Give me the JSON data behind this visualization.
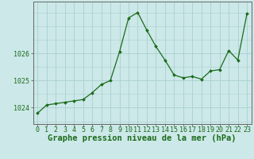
{
  "x": [
    0,
    1,
    2,
    3,
    4,
    5,
    6,
    7,
    8,
    9,
    10,
    11,
    12,
    13,
    14,
    15,
    16,
    17,
    18,
    19,
    20,
    21,
    22,
    23
  ],
  "y": [
    1023.8,
    1024.1,
    1024.15,
    1024.2,
    1024.25,
    1024.3,
    1024.55,
    1024.85,
    1025.0,
    1026.05,
    1027.3,
    1027.5,
    1026.85,
    1026.25,
    1025.75,
    1025.2,
    1025.1,
    1025.15,
    1025.05,
    1025.35,
    1025.4,
    1026.1,
    1025.75,
    1027.45
  ],
  "line_color": "#1a6b1a",
  "marker": "D",
  "marker_size": 2.0,
  "bg_color": "#cce8e8",
  "grid_color": "#aad0d0",
  "ylabel_ticks": [
    1024,
    1025,
    1026
  ],
  "xlabel_label": "Graphe pression niveau de la mer (hPa)",
  "xlabel_fontsize": 7.5,
  "tick_fontsize": 6.0,
  "ylim": [
    1023.4,
    1027.9
  ],
  "xlim": [
    -0.5,
    23.5
  ],
  "axis_color": "#666666",
  "linewidth": 0.9
}
